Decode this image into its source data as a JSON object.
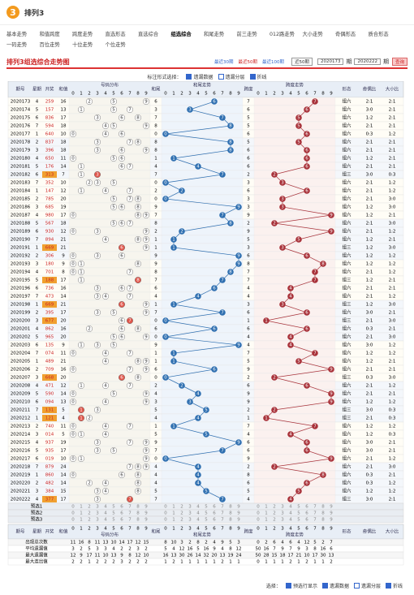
{
  "header": {
    "logo": "3",
    "title": "排列3"
  },
  "nav": [
    "基本走势",
    "和值跨度",
    "跨度走势",
    "直选形态",
    "直选综合",
    "组选综合",
    "和尾走势",
    "前三走势",
    "012路走势",
    "大小走势",
    "奇偶形态",
    "质合形态",
    "一码走势",
    "百位走势",
    "十位走势",
    "个位走势"
  ],
  "panel": {
    "title": "排列3组选综合走势图",
    "range_links": [
      "最近30期",
      "最近50期",
      "最近100期"
    ],
    "range_select": "近50期",
    "from": "2020173",
    "to": "2020222",
    "unit": "期",
    "query": "查询",
    "option_label": "标注形式选择：",
    "options": [
      "遗漏数据",
      "遗漏分层",
      "折线"
    ]
  },
  "table": {
    "columns": [
      "期号",
      "星期",
      "开奖",
      "和值",
      "号码分布",
      "和尾",
      "和尾走势",
      "跨度",
      "跨度走势",
      "形态",
      "奇偶比",
      "大小比"
    ],
    "digits": [
      "0",
      "1",
      "2",
      "3",
      "4",
      "5",
      "6",
      "7",
      "8",
      "9"
    ],
    "rows": [
      {
        "issue": "2020173",
        "week": 4,
        "number": "259",
        "sum": 16,
        "tail": 6,
        "span": 7,
        "shape": "组六",
        "odd_even": "2:1",
        "big_small": "2:1"
      },
      {
        "issue": "2020174",
        "week": 5,
        "number": "157",
        "sum": 13,
        "tail": 3,
        "span": 6,
        "shape": "组六",
        "odd_even": "3:0",
        "big_small": "2:1"
      },
      {
        "issue": "2020175",
        "week": 6,
        "number": "836",
        "sum": 17,
        "tail": 7,
        "span": 5,
        "shape": "组六",
        "odd_even": "1:2",
        "big_small": "2:1"
      },
      {
        "issue": "2020176",
        "week": 7,
        "number": "594",
        "sum": 18,
        "tail": 8,
        "span": 5,
        "shape": "组六",
        "odd_even": "2:1",
        "big_small": "2:1"
      },
      {
        "issue": "2020177",
        "week": 1,
        "number": "640",
        "sum": 10,
        "tail": 0,
        "span": 6,
        "shape": "组六",
        "odd_even": "0:3",
        "big_small": "1:2"
      },
      {
        "issue": "2020178",
        "week": 2,
        "number": "837",
        "sum": 18,
        "tail": 8,
        "span": 5,
        "shape": "组六",
        "odd_even": "2:1",
        "big_small": "2:1"
      },
      {
        "issue": "2020179",
        "week": 3,
        "number": "396",
        "sum": 18,
        "tail": 8,
        "span": 6,
        "shape": "组六",
        "odd_even": "2:1",
        "big_small": "2:1"
      },
      {
        "issue": "2020180",
        "week": 4,
        "number": "650",
        "sum": 11,
        "tail": 1,
        "span": 6,
        "shape": "组六",
        "odd_even": "1:2",
        "big_small": "2:1"
      },
      {
        "issue": "2020181",
        "week": 5,
        "number": "176",
        "sum": 14,
        "tail": 4,
        "span": 6,
        "shape": "组六",
        "odd_even": "2:1",
        "big_small": "2:1"
      },
      {
        "issue": "2020182",
        "week": 6,
        "number": "313",
        "sum": 7,
        "tail": 7,
        "span": 2,
        "shape": "组三",
        "odd_even": "3:0",
        "big_small": "0:3"
      },
      {
        "issue": "2020183",
        "week": 7,
        "number": "352",
        "sum": 10,
        "tail": 0,
        "span": 3,
        "shape": "组六",
        "odd_even": "2:1",
        "big_small": "1:2"
      },
      {
        "issue": "2020184",
        "week": 1,
        "number": "147",
        "sum": 12,
        "tail": 2,
        "span": 6,
        "shape": "组六",
        "odd_even": "2:1",
        "big_small": "1:2"
      },
      {
        "issue": "2020185",
        "week": 2,
        "number": "785",
        "sum": 20,
        "tail": 0,
        "span": 3,
        "shape": "组六",
        "odd_even": "2:1",
        "big_small": "3:0"
      },
      {
        "issue": "2020186",
        "week": 3,
        "number": "685",
        "sum": 19,
        "tail": 9,
        "span": 3,
        "shape": "组六",
        "odd_even": "1:2",
        "big_small": "3:0"
      },
      {
        "issue": "2020187",
        "week": 4,
        "number": "980",
        "sum": 17,
        "tail": 7,
        "span": 9,
        "shape": "组六",
        "odd_even": "1:2",
        "big_small": "2:1"
      },
      {
        "issue": "2020188",
        "week": 5,
        "number": "567",
        "sum": 18,
        "tail": 8,
        "span": 2,
        "shape": "组六",
        "odd_even": "2:1",
        "big_small": "3:0"
      },
      {
        "issue": "2020189",
        "week": 6,
        "number": "930",
        "sum": 12,
        "tail": 2,
        "span": 9,
        "shape": "组六",
        "odd_even": "2:1",
        "big_small": "1:2"
      },
      {
        "issue": "2020190",
        "week": 7,
        "number": "894",
        "sum": 21,
        "tail": 1,
        "span": 5,
        "shape": "组六",
        "odd_even": "1:2",
        "big_small": "2:1"
      },
      {
        "issue": "2020191",
        "week": 1,
        "number": "669",
        "sum": 21,
        "tail": 1,
        "span": 3,
        "shape": "组三",
        "odd_even": "1:2",
        "big_small": "3:0"
      },
      {
        "issue": "2020192",
        "week": 2,
        "number": "306",
        "sum": 9,
        "tail": 9,
        "span": 6,
        "shape": "组六",
        "odd_even": "1:2",
        "big_small": "1:2"
      },
      {
        "issue": "2020193",
        "week": 3,
        "number": "180",
        "sum": 9,
        "tail": 9,
        "span": 8,
        "shape": "组六",
        "odd_even": "1:2",
        "big_small": "1:2"
      },
      {
        "issue": "2020194",
        "week": 4,
        "number": "701",
        "sum": 8,
        "tail": 8,
        "span": 7,
        "shape": "组六",
        "odd_even": "2:1",
        "big_small": "1:2"
      },
      {
        "issue": "2020195",
        "week": 5,
        "number": "188",
        "sum": 17,
        "tail": 7,
        "span": 7,
        "shape": "组三",
        "odd_even": "1:2",
        "big_small": "2:1"
      },
      {
        "issue": "2020196",
        "week": 6,
        "number": "736",
        "sum": 16,
        "tail": 6,
        "span": 4,
        "shape": "组六",
        "odd_even": "2:1",
        "big_small": "2:1"
      },
      {
        "issue": "2020197",
        "week": 7,
        "number": "473",
        "sum": 14,
        "tail": 4,
        "span": 4,
        "shape": "组六",
        "odd_even": "2:1",
        "big_small": "1:2"
      },
      {
        "issue": "2020198",
        "week": 1,
        "number": "669",
        "sum": 21,
        "tail": 1,
        "span": 3,
        "shape": "组三",
        "odd_even": "1:2",
        "big_small": "3:0"
      },
      {
        "issue": "2020199",
        "week": 2,
        "number": "395",
        "sum": 17,
        "tail": 7,
        "span": 6,
        "shape": "组六",
        "odd_even": "3:0",
        "big_small": "2:1"
      },
      {
        "issue": "2020200",
        "week": 3,
        "number": "677",
        "sum": 20,
        "tail": 0,
        "span": 1,
        "shape": "组三",
        "odd_even": "2:1",
        "big_small": "3:0"
      },
      {
        "issue": "2020201",
        "week": 4,
        "number": "862",
        "sum": 16,
        "tail": 6,
        "span": 6,
        "shape": "组六",
        "odd_even": "0:3",
        "big_small": "2:1"
      },
      {
        "issue": "2020202",
        "week": 5,
        "number": "965",
        "sum": 20,
        "tail": 0,
        "span": 4,
        "shape": "组六",
        "odd_even": "2:1",
        "big_small": "3:0"
      },
      {
        "issue": "2020203",
        "week": 6,
        "number": "135",
        "sum": 9,
        "tail": 9,
        "span": 4,
        "shape": "组六",
        "odd_even": "3:0",
        "big_small": "1:2"
      },
      {
        "issue": "2020204",
        "week": 7,
        "number": "074",
        "sum": 11,
        "tail": 1,
        "span": 7,
        "shape": "组六",
        "odd_even": "1:2",
        "big_small": "1:2"
      },
      {
        "issue": "2020205",
        "week": 1,
        "number": "489",
        "sum": 21,
        "tail": 1,
        "span": 5,
        "shape": "组六",
        "odd_even": "1:2",
        "big_small": "2:1"
      },
      {
        "issue": "2020206",
        "week": 2,
        "number": "709",
        "sum": 16,
        "tail": 6,
        "span": 9,
        "shape": "组六",
        "odd_even": "2:1",
        "big_small": "2:1"
      },
      {
        "issue": "2020207",
        "week": 3,
        "number": "668",
        "sum": 20,
        "tail": 0,
        "span": 2,
        "shape": "组三",
        "odd_even": "0:3",
        "big_small": "3:0"
      },
      {
        "issue": "2020208",
        "week": 4,
        "number": "471",
        "sum": 12,
        "tail": 2,
        "span": 6,
        "shape": "组六",
        "odd_even": "2:1",
        "big_small": "1:2"
      },
      {
        "issue": "2020209",
        "week": 5,
        "number": "590",
        "sum": 14,
        "tail": 4,
        "span": 9,
        "shape": "组六",
        "odd_even": "2:1",
        "big_small": "2:1"
      },
      {
        "issue": "2020210",
        "week": 6,
        "number": "094",
        "sum": 13,
        "tail": 3,
        "span": 9,
        "shape": "组六",
        "odd_even": "1:2",
        "big_small": "1:2"
      },
      {
        "issue": "2020211",
        "week": 7,
        "number": "131",
        "sum": 5,
        "tail": 5,
        "span": 2,
        "shape": "组三",
        "odd_even": "3:0",
        "big_small": "0:3"
      },
      {
        "issue": "2020212",
        "week": 1,
        "number": "121",
        "sum": 4,
        "tail": 4,
        "span": 1,
        "shape": "组三",
        "odd_even": "2:1",
        "big_small": "0:3"
      },
      {
        "issue": "2020213",
        "week": 2,
        "number": "740",
        "sum": 11,
        "tail": 1,
        "span": 7,
        "shape": "组六",
        "odd_even": "1:2",
        "big_small": "1:2"
      },
      {
        "issue": "2020214",
        "week": 3,
        "number": "014",
        "sum": 5,
        "tail": 5,
        "span": 4,
        "shape": "组六",
        "odd_even": "1:2",
        "big_small": "0:3"
      },
      {
        "issue": "2020215",
        "week": 4,
        "number": "937",
        "sum": 19,
        "tail": 9,
        "span": 6,
        "shape": "组六",
        "odd_even": "3:0",
        "big_small": "2:1"
      },
      {
        "issue": "2020216",
        "week": 5,
        "number": "935",
        "sum": 17,
        "tail": 7,
        "span": 6,
        "shape": "组六",
        "odd_even": "3:0",
        "big_small": "2:1"
      },
      {
        "issue": "2020217",
        "week": 6,
        "number": "019",
        "sum": 10,
        "tail": 0,
        "span": 9,
        "shape": "组六",
        "odd_even": "2:1",
        "big_small": "1:2"
      },
      {
        "issue": "2020218",
        "week": 7,
        "number": "879",
        "sum": 24,
        "tail": 4,
        "span": 2,
        "shape": "组六",
        "odd_even": "2:1",
        "big_small": "3:0"
      },
      {
        "issue": "2020219",
        "week": 1,
        "number": "860",
        "sum": 14,
        "tail": 4,
        "span": 8,
        "shape": "组六",
        "odd_even": "0:3",
        "big_small": "2:1"
      },
      {
        "issue": "2020220",
        "week": 2,
        "number": "482",
        "sum": 14,
        "tail": 4,
        "span": 6,
        "shape": "组六",
        "odd_even": "0:3",
        "big_small": "1:2"
      },
      {
        "issue": "2020221",
        "week": 3,
        "number": "384",
        "sum": 15,
        "tail": 5,
        "span": 5,
        "shape": "组六",
        "odd_even": "1:2",
        "big_small": "1:2"
      },
      {
        "issue": "2020222",
        "week": 4,
        "number": "377",
        "sum": 17,
        "tail": 7,
        "span": 4,
        "shape": "组三",
        "odd_even": "3:0",
        "big_small": "2:1"
      }
    ],
    "preselect": [
      "预选1",
      "预选2",
      "预选3"
    ],
    "stats": [
      {
        "name": "出现总次数",
        "values": [
          11,
          16,
          8,
          11,
          13,
          10,
          14,
          17,
          12,
          15,
          8,
          10,
          3,
          2,
          8,
          2,
          4,
          9,
          5,
          3,
          0,
          2,
          6,
          4,
          6,
          4,
          12,
          5,
          2,
          7
        ]
      },
      {
        "name": "平均遗漏值",
        "values": [
          3,
          2,
          5,
          3,
          3,
          4,
          2,
          2,
          3,
          2,
          5,
          4,
          12,
          16,
          5,
          16,
          9,
          4,
          8,
          12,
          50,
          16,
          7,
          9,
          7,
          9,
          3,
          8,
          16,
          6
        ]
      },
      {
        "name": "最大遗漏值",
        "values": [
          12,
          9,
          17,
          11,
          10,
          13,
          9,
          8,
          12,
          10,
          16,
          13,
          30,
          26,
          14,
          32,
          20,
          13,
          19,
          24,
          50,
          28,
          15,
          18,
          17,
          21,
          10,
          17,
          30,
          13
        ]
      },
      {
        "name": "最大连出值",
        "values": [
          2,
          2,
          1,
          2,
          2,
          2,
          3,
          2,
          2,
          2,
          1,
          2,
          1,
          1,
          1,
          1,
          1,
          2,
          1,
          1,
          0,
          1,
          1,
          1,
          2,
          1,
          2,
          1,
          1,
          2
        ]
      }
    ]
  },
  "footer": {
    "label": "选择：",
    "options": [
      "预选行显示",
      "遗漏数据",
      "遗漏分层",
      "折线"
    ]
  }
}
